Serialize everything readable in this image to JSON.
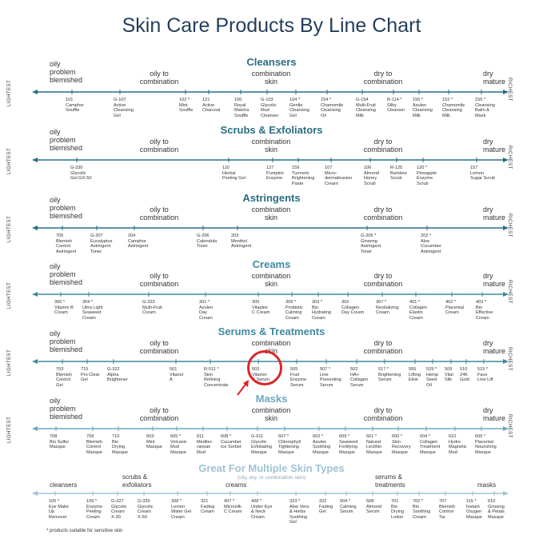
{
  "title": "Skin Care Products By Line Chart",
  "labels": {
    "left": "LIGHTEST",
    "right": "RICHEST"
  },
  "zones": {
    "oily_problem": "oily\nproblem\nblemished",
    "oily_combo": "oily to\ncombination",
    "combo": "combination\nskin",
    "dry_combo": "dry to\ncombination",
    "dry": "dry\nmature"
  },
  "colors": {
    "title": "#243e5a",
    "teal": "#2a6e84",
    "mid": "#3f8aa1",
    "light": "#6ea7bd",
    "pale": "#9fc3d3",
    "highlight": "#d9262b"
  },
  "sections": [
    {
      "title": "Cleansers",
      "color": "#2a6e84",
      "products": [
        "101\nCamphor\nSouffle",
        "G-107\nActive\nCleansing\nGel",
        "102 *\nMint\nSouffle",
        "121\nActive\nCharcoal",
        "100\nRoyal\nMatcha\nSouffle",
        "G-103\nGlycolic\nMud\nCleanser",
        "104 *\nGentle\nCleansing\nGel",
        "154 *\nChamomile\nCleansing\nOil",
        "G-154\nMulti-Fruit\nCleansing\nMilk",
        "R-114 *\nSilky\nCleanser",
        "150 *\nAzulen\nCleansing\nMilk",
        "152 *\nChamomile\nCleansing\nMilk",
        "155 *\nCleansing\nBalm &\nMask"
      ]
    },
    {
      "title": "Scrubs & Exfoliators",
      "color": "#2a6e84",
      "products": [
        "G-330\nGlycolic\nGel GX-50",
        "110\nHerbal\nPeeling Gel",
        "127\nPumpkin\nEnzyme",
        "159\nTurmeric\nBrightening\nPaste",
        "107\nMicro-\ndermabrasion\nCream",
        "106\nAlmond\nHoney\nScrub",
        "R-125\nBamboo\nScrub",
        "120 *\nPineapple\nEnzyme\nScrub",
        "157\nLemon\nSugar Scrub"
      ]
    },
    {
      "title": "Astringents",
      "color": "#2a6e84",
      "products": [
        "705\nBlemish\nControl\nAstringent",
        "G-207\nEucalyptus\nAstringent\nToner",
        "204\nCamphor\nAstringent",
        "G-206\nCalendula\nToner",
        "203\nMenthol\nAstringent",
        "G-205 *\nGinseng\nAstringent\nToner",
        "202 *\nAloe\nCucumber\nAstringent"
      ]
    },
    {
      "title": "Creams",
      "color": "#3f8aa1",
      "products": [
        "300 *\nVitamin B\nCream",
        "304 *\nUltra Light\nSeaweed\nCream",
        "G-323\nMulti-Fruit\nCream",
        "301 *\nAzulen\nDay\nCream",
        "305\nVitaplex\nC Cream",
        "309 *\nProbiotic\nCalming\nCream",
        "303 *\nBio\nHydrating\nCream",
        "302\nCollagen\nDay Cream",
        "307 *\nRevitalizing\nCream",
        "401 *\nCollagen\nElastin\nCream",
        "402 *\nPlacental\nCream",
        "403 *\nBio\nEffective\nCream"
      ]
    },
    {
      "title": "Serums & Treatments",
      "color": "#3f8aa1",
      "products": [
        "703\nBlemish\nControl\nGel",
        "715\nPro Clear\nGel",
        "G-322\nAlpha\nBrightener",
        "501\nVitanol\nA",
        "R-511 *\nSkin\nRefining\nConcentrate",
        "503\nVitamin\nC Serum",
        "505\nFruit\nEnzyme\nSerum",
        "507 *\nLine\nPreventing\nSerum",
        "502\nHA+\nCollagen\nSerum",
        "517 *\nBrightening\nSerum",
        "555\nLifting\nElixir",
        "529 *\nHemp\nSeed\nOil",
        "509\nVital\nSilk",
        "510\n24K\nGold",
        "515 *\nFace\nLine Lift"
      ]
    },
    {
      "title": "Masks",
      "color": "#6ea7bd",
      "products": [
        "708\nBio Sulfur\nMasque",
        "709\nBlemish\nControl\nMasque",
        "710\nBio\nDrying\nMasque",
        "603\nMint\nMasque",
        "605 *\nVolcanic\nMud\nMasque",
        "611\nMediter-\nranean\nMud",
        "608 *\nCucumber\nIce Sorbet",
        "G-611\nGlycolic\nExfoliating\nMasque",
        "607 *\nChlorophyll\nTightening\nMasque",
        "602 *\nAzulen\nSoothing\nMasque",
        "609 *\nSeaweed\nFortifying\nMasque",
        "601 *\nNatural\nLecithin\nMasque",
        "600 *\nSkin\nRecovery\nMasque",
        "604 *\nCollagen\nTreatment\nMasque",
        "610\nHydro\nMagnetic\nMud",
        "606 *\nPlacental\nNourishing\nMasque"
      ]
    },
    {
      "title": "Great For Multiple Skin Types",
      "subtitle": "(oily, dry, or combination skin)",
      "color": "#9fc3d3",
      "groups": [
        "cleansers",
        "scrubs &\nexfoliators",
        "creams",
        "serums &\ntreatments",
        "masks"
      ],
      "products": [
        "105 *\nEye Make\nUp\nRemover",
        "109 *\nEnzyme\nPeeling\nCream",
        "G-327\nGlycolic\nCream\nX-30",
        "G-329\nGlycolic\nCream\nX-50",
        "308 *\nLemon\nWater Gel\nCream",
        "321\nFading\nCream",
        "407 *\nMicrosilk\nC Cream",
        "408 *\nUnder Eye\n& Neck\nCream",
        "323 *\nAloe Vera\n& Herbs\nSoothing\nGel",
        "322\nFading\nGel",
        "504 *\nCalming\nSerum",
        "508\nAlmond\nSerum",
        "701\nBio\nDrying\nLotion",
        "702 *\nBio\nSoothing\nCream",
        "707\nBlemish\nControl\nTar",
        "115 *\nInstant\nOxygen\nMasque",
        "610\nGinseng\n& Petals\nMasque"
      ]
    }
  ],
  "footnote": "* products suitable for sensitive skin"
}
